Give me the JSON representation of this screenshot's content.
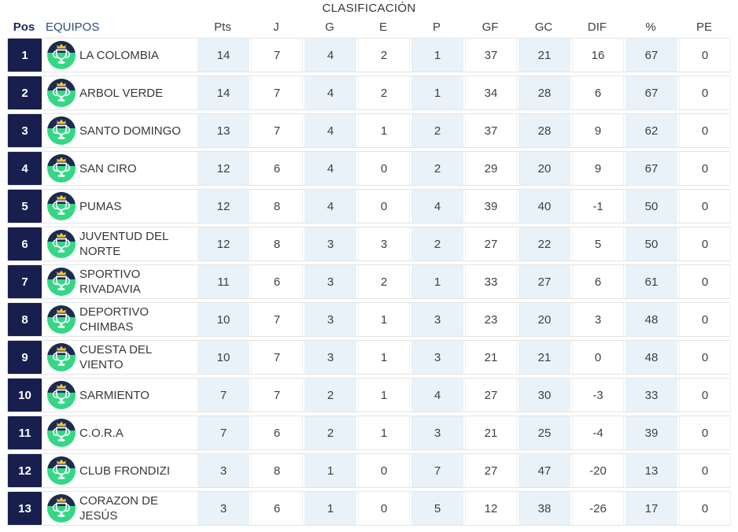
{
  "title": "CLASIFICACIÓN",
  "header": {
    "pos": "Pos",
    "team": "EQUIPOS",
    "stats": [
      "Pts",
      "J",
      "G",
      "E",
      "P",
      "GF",
      "GC",
      "DIF",
      "%",
      "PE"
    ]
  },
  "colors": {
    "pos_badge_bg": "#181f4e",
    "shaded_column": "#e9f2f8",
    "crest_navy": "#1d2b50",
    "crest_green": "#35d786",
    "crest_crown_gold": "#f0c437",
    "header_link_blue": "#2a4a85",
    "row_border": "#e4e4e4"
  },
  "icons": {
    "team_crest": "trophy-crown-crest-icon"
  },
  "rows": [
    {
      "pos": "1",
      "team": "LA COLOMBIA",
      "stats": [
        "14",
        "7",
        "4",
        "2",
        "1",
        "37",
        "21",
        "16",
        "67",
        "0"
      ]
    },
    {
      "pos": "2",
      "team": "ARBOL VERDE",
      "stats": [
        "14",
        "7",
        "4",
        "2",
        "1",
        "34",
        "28",
        "6",
        "67",
        "0"
      ]
    },
    {
      "pos": "3",
      "team": "SANTO DOMINGO",
      "stats": [
        "13",
        "7",
        "4",
        "1",
        "2",
        "37",
        "28",
        "9",
        "62",
        "0"
      ]
    },
    {
      "pos": "4",
      "team": "SAN CIRO",
      "stats": [
        "12",
        "6",
        "4",
        "0",
        "2",
        "29",
        "20",
        "9",
        "67",
        "0"
      ]
    },
    {
      "pos": "5",
      "team": "PUMAS",
      "stats": [
        "12",
        "8",
        "4",
        "0",
        "4",
        "39",
        "40",
        "-1",
        "50",
        "0"
      ]
    },
    {
      "pos": "6",
      "team": "JUVENTUD DEL NORTE",
      "stats": [
        "12",
        "8",
        "3",
        "3",
        "2",
        "27",
        "22",
        "5",
        "50",
        "0"
      ]
    },
    {
      "pos": "7",
      "team": "SPORTIVO RIVADAVIA",
      "stats": [
        "11",
        "6",
        "3",
        "2",
        "1",
        "33",
        "27",
        "6",
        "61",
        "0"
      ]
    },
    {
      "pos": "8",
      "team": "DEPORTIVO CHIMBAS",
      "stats": [
        "10",
        "7",
        "3",
        "1",
        "3",
        "23",
        "20",
        "3",
        "48",
        "0"
      ]
    },
    {
      "pos": "9",
      "team": "CUESTA DEL VIENTO",
      "stats": [
        "10",
        "7",
        "3",
        "1",
        "3",
        "21",
        "21",
        "0",
        "48",
        "0"
      ]
    },
    {
      "pos": "10",
      "team": "SARMIENTO",
      "stats": [
        "7",
        "7",
        "2",
        "1",
        "4",
        "27",
        "30",
        "-3",
        "33",
        "0"
      ]
    },
    {
      "pos": "11",
      "team": "C.O.R.A",
      "stats": [
        "7",
        "6",
        "2",
        "1",
        "3",
        "21",
        "25",
        "-4",
        "39",
        "0"
      ]
    },
    {
      "pos": "12",
      "team": "CLUB FRONDIZI",
      "stats": [
        "3",
        "8",
        "1",
        "0",
        "7",
        "27",
        "47",
        "-20",
        "13",
        "0"
      ]
    },
    {
      "pos": "13",
      "team": "CORAZON DE JESÚS",
      "stats": [
        "3",
        "6",
        "1",
        "0",
        "5",
        "12",
        "38",
        "-26",
        "17",
        "0"
      ]
    }
  ],
  "shaded_stat_columns": [
    0,
    2,
    4,
    6,
    8
  ]
}
